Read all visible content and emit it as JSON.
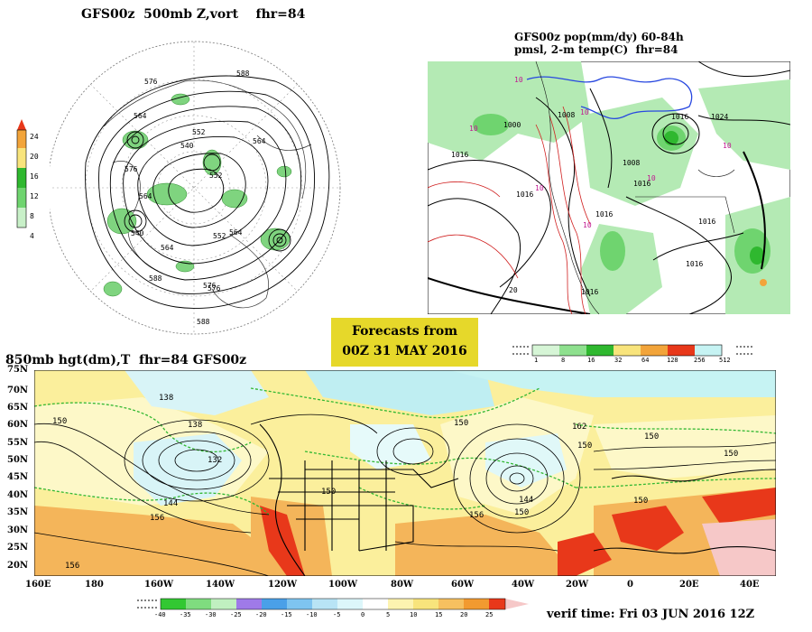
{
  "panel_polar": {
    "title": "GFS00z  500mb Z,vort    fhr=84",
    "colorbar_labels": [
      "24",
      "20",
      "16",
      "12",
      "8",
      "4"
    ],
    "contour_labels": [
      "576",
      "588",
      "564",
      "552",
      "540",
      "576",
      "564",
      "552",
      "564",
      "564",
      "540",
      "552",
      "564",
      "576",
      "588",
      "588",
      "576"
    ]
  },
  "panel_precip": {
    "title_line1": "GFS00z pop(mm/dy) 60-84h",
    "title_line2": "pmsl, 2-m temp(C)  fhr=84",
    "pressure_labels": [
      "1000",
      "1008",
      "1016",
      "1016",
      "1016",
      "1024",
      "1016",
      "1016",
      "1016",
      "1008",
      "1016",
      "1016"
    ],
    "temp_labels": [
      "10",
      "10",
      "10",
      "10",
      "10",
      "10",
      "10",
      "20"
    ],
    "colorbar_labels": [
      "1",
      "8",
      "16",
      "32",
      "64",
      "128",
      "256",
      "512"
    ]
  },
  "banner": {
    "line1": "Forecasts from",
    "line2": "00Z 31 MAY 2016"
  },
  "panel_850": {
    "title": "850mb hgt(dm),T  fhr=84 GFS00z",
    "lat_labels": [
      "75N",
      "70N",
      "65N",
      "60N",
      "55N",
      "50N",
      "45N",
      "40N",
      "35N",
      "30N",
      "25N",
      "20N"
    ],
    "lon_labels": [
      "160E",
      "180",
      "160W",
      "140W",
      "120W",
      "100W",
      "80W",
      "60W",
      "40W",
      "20W",
      "0",
      "20E",
      "40E"
    ],
    "contour_labels": [
      "138",
      "150",
      "132",
      "138",
      "144",
      "150",
      "150",
      "156",
      "144",
      "150",
      "156",
      "162",
      "150",
      "150",
      "150",
      "150",
      "156"
    ],
    "colorbar_labels": [
      "-40",
      "-35",
      "-30",
      "-25",
      "-20",
      "-15",
      "-10",
      "-5",
      "0",
      "5",
      "10",
      "15",
      "20",
      "25"
    ]
  },
  "verif": "verif time: Fri 03 JUN 2016 12Z",
  "colors": {
    "green_light": "#b4eab4",
    "green_mid": "#6fd46f",
    "green_dark": "#2fb82f",
    "yellow": "#f8e47c",
    "orange": "#f2a43a",
    "red": "#e8381a",
    "cyan": "#c6f3f3",
    "banner": "#e6d82a"
  }
}
